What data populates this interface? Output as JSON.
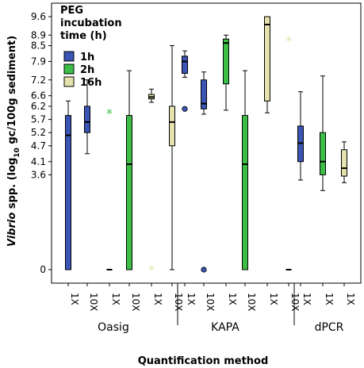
{
  "chart_data": {
    "type": "boxplot",
    "ylabel_italic": "Vibrio",
    "ylabel_rest": " spp. (log",
    "ylabel_sub": "10",
    "ylabel_end": " gc/100g sediment)",
    "xlabel": "Quantification method",
    "legend_title": [
      "PEG",
      "incubation",
      "time (h)"
    ],
    "y_ticks": [
      "0",
      "3.6",
      "4.1",
      "4.7",
      "5.2",
      "5.7",
      "6.2",
      "6.6",
      "7.2",
      "7.9",
      "8.5",
      "8.9",
      "9.6"
    ],
    "series": [
      {
        "name": "1h",
        "color": "#3a55b4"
      },
      {
        "name": "2h",
        "color": "#3dbf47"
      },
      {
        "name": "16h",
        "color": "#e6e2ae"
      }
    ],
    "groups": [
      {
        "name": "Oasig",
        "categories": [
          "1X",
          "10X",
          "1X",
          "10X",
          "1X",
          "10X"
        ]
      },
      {
        "name": "KAPA",
        "categories": [
          "1X",
          "10X",
          "1X",
          "10X",
          "1X",
          "10X"
        ]
      },
      {
        "name": "dPCR",
        "categories": [
          "1X",
          "1X",
          "1X"
        ]
      }
    ],
    "boxes": [
      {
        "group": "Oasig",
        "category": "1X",
        "series": "1h",
        "min": 0,
        "q1": 0,
        "median": 5.1,
        "q3": 5.85,
        "max": 6.4
      },
      {
        "group": "Oasig",
        "category": "10X",
        "series": "1h",
        "min": 4.4,
        "q1": 5.2,
        "median": 5.6,
        "q3": 6.2,
        "max": 7.2
      },
      {
        "group": "Oasig",
        "category": "1X",
        "series": "2h",
        "min": 0,
        "q1": 0,
        "median": 0,
        "q3": 0,
        "max": 0,
        "outliers": [
          {
            "value": 5.95,
            "symbol": "star"
          }
        ]
      },
      {
        "group": "Oasig",
        "category": "10X",
        "series": "2h",
        "min": 0,
        "q1": 0,
        "median": 4.0,
        "q3": 5.85,
        "max": 7.55
      },
      {
        "group": "Oasig",
        "category": "1X",
        "series": "16h",
        "min": 6.35,
        "q1": 6.48,
        "median": 6.55,
        "q3": 6.65,
        "max": 6.85,
        "outliers": [
          {
            "value": 0,
            "symbol": "star"
          }
        ]
      },
      {
        "group": "Oasig",
        "category": "10X",
        "series": "16h",
        "min": 0,
        "q1": 4.7,
        "median": 5.6,
        "q3": 6.2,
        "max": 8.5
      },
      {
        "group": "KAPA",
        "category": "1X",
        "series": "1h",
        "min": 7.3,
        "q1": 7.45,
        "median": 7.9,
        "q3": 8.1,
        "max": 8.3,
        "outliers": [
          {
            "value": 6.1,
            "symbol": "circle"
          }
        ]
      },
      {
        "group": "KAPA",
        "category": "10X",
        "series": "1h",
        "min": 5.9,
        "q1": 6.1,
        "median": 6.3,
        "q3": 7.2,
        "max": 7.5,
        "outliers": [
          {
            "value": 0,
            "symbol": "circle"
          }
        ]
      },
      {
        "group": "KAPA",
        "category": "1X",
        "series": "2h",
        "min": 6.05,
        "q1": 7.05,
        "median": 8.6,
        "q3": 8.75,
        "max": 8.9
      },
      {
        "group": "KAPA",
        "category": "10X",
        "series": "2h",
        "min": 0,
        "q1": 0,
        "median": 4.0,
        "q3": 5.85,
        "max": 7.55
      },
      {
        "group": "KAPA",
        "category": "1X",
        "series": "16h",
        "min": 5.95,
        "q1": 6.4,
        "median": 9.3,
        "q3": 9.6,
        "max": 9.6
      },
      {
        "group": "KAPA",
        "category": "10X",
        "series": "16h",
        "min": 0,
        "q1": 0,
        "median": 0,
        "q3": 0,
        "max": 0,
        "outliers": [
          {
            "value": 8.7,
            "symbol": "star"
          }
        ]
      },
      {
        "group": "dPCR",
        "category": "1X",
        "series": "1h",
        "min": 3.4,
        "q1": 4.1,
        "median": 4.8,
        "q3": 5.45,
        "max": 6.75
      },
      {
        "group": "dPCR",
        "category": "1X",
        "series": "2h",
        "min": 3.0,
        "q1": 3.6,
        "median": 4.1,
        "q3": 5.2,
        "max": 7.35
      },
      {
        "group": "dPCR",
        "category": "1X",
        "series": "16h",
        "min": 3.3,
        "q1": 3.55,
        "median": 3.85,
        "q3": 4.55,
        "max": 4.85
      }
    ]
  }
}
